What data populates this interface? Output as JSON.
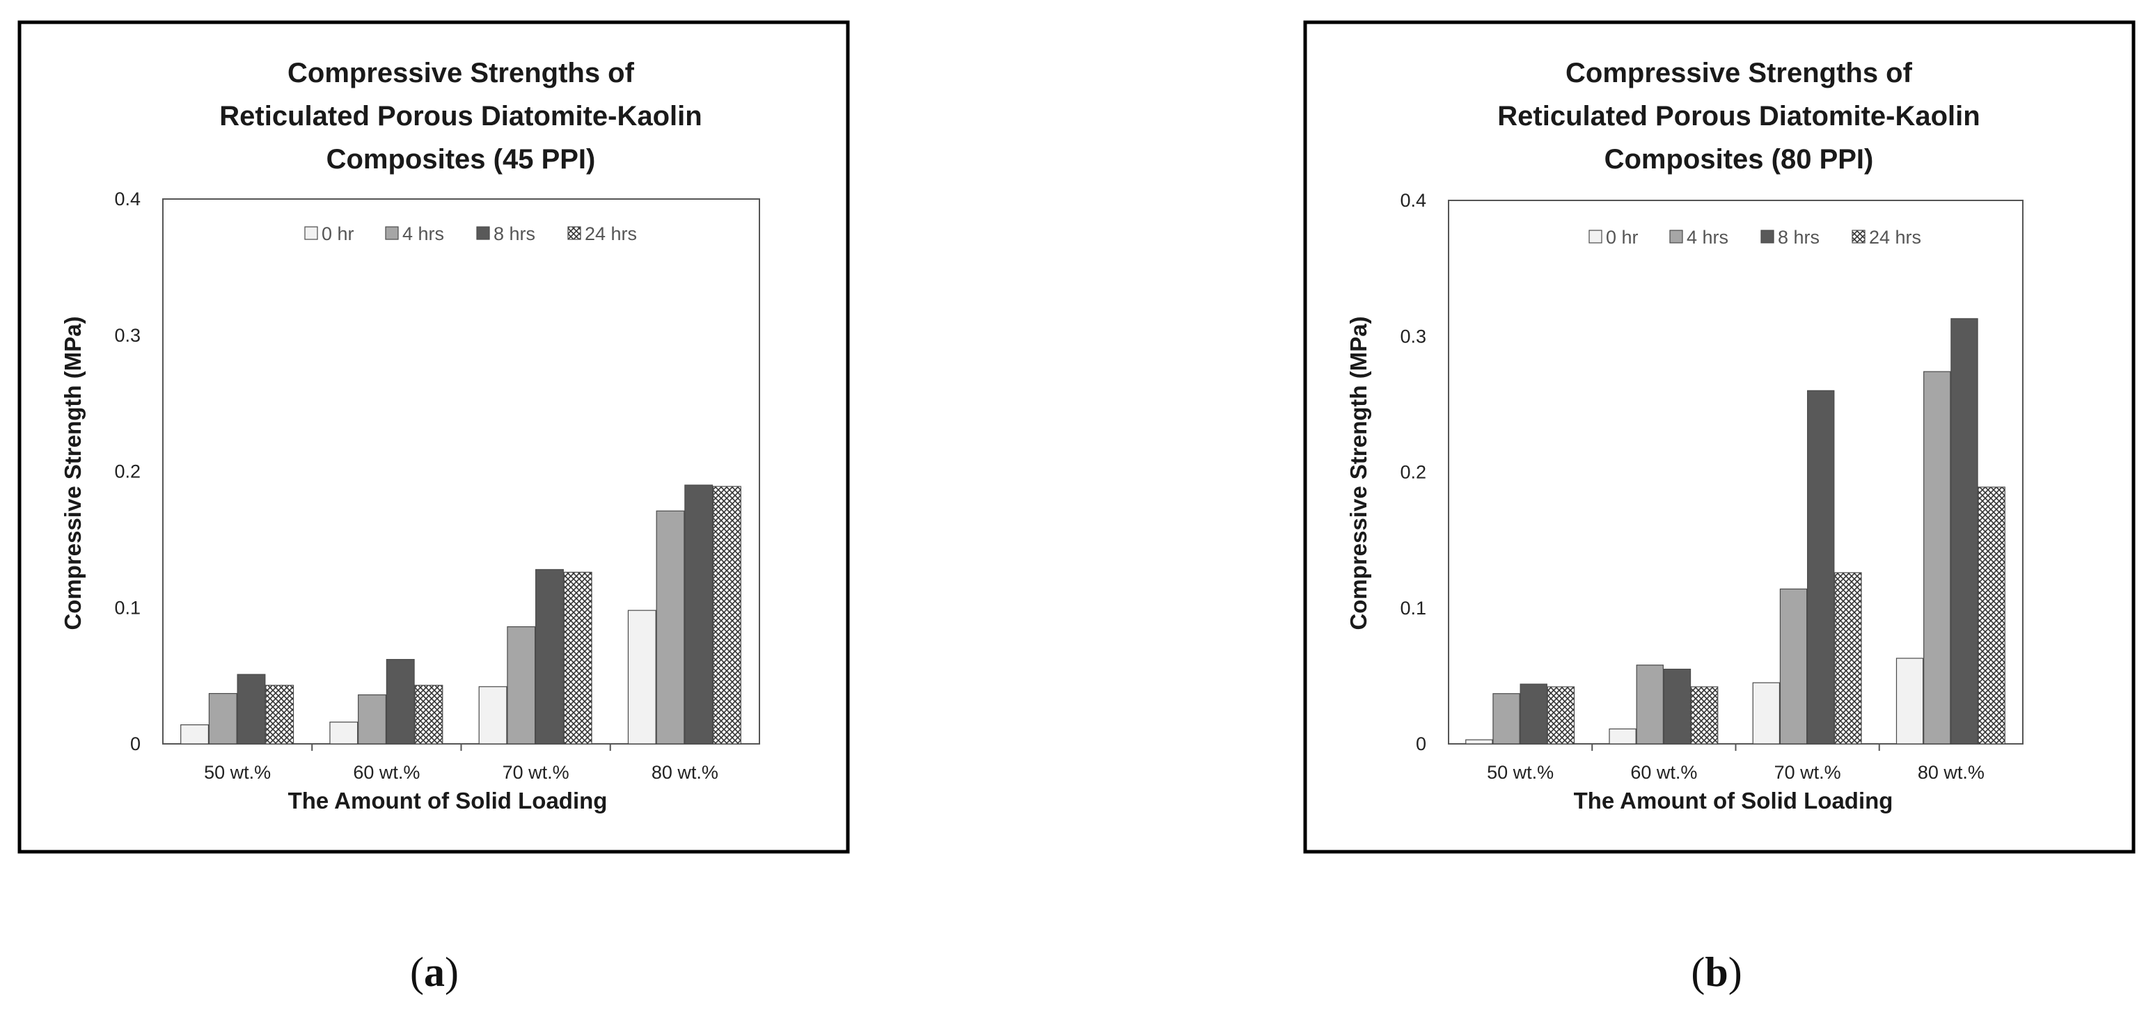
{
  "panels": [
    {
      "label": "a"
    },
    {
      "label": "b"
    }
  ],
  "chart_data": [
    {
      "type": "bar",
      "title_lines": [
        "Compressive Strengths of",
        "Reticulated Porous Diatomite-Kaolin",
        "Composites (45 PPI)"
      ],
      "xlabel": "The Amount of Solid Loading",
      "ylabel": "Compressive Strength (MPa)",
      "ylim": [
        0,
        0.4
      ],
      "yticks": [
        "0",
        "0.1",
        "0.2",
        "0.3",
        "0.4"
      ],
      "categories": [
        "50 wt.%",
        "60 wt.%",
        "70 wt.%",
        "80 wt.%"
      ],
      "legend_position": "top-center",
      "series": [
        {
          "name": "0 hr",
          "fill": "#f2f2f2",
          "values": [
            0.014,
            0.016,
            0.042,
            0.098
          ]
        },
        {
          "name": "4 hrs",
          "fill": "#a6a6a6",
          "values": [
            0.037,
            0.036,
            0.086,
            0.171
          ]
        },
        {
          "name": "8 hrs",
          "fill": "#595959",
          "values": [
            0.051,
            0.062,
            0.128,
            0.19
          ]
        },
        {
          "name": "24 hrs",
          "fill": "pattern",
          "values": [
            0.043,
            0.043,
            0.126,
            0.189
          ]
        }
      ]
    },
    {
      "type": "bar",
      "title_lines": [
        "Compressive Strengths of",
        "Reticulated Porous Diatomite-Kaolin",
        "Composites (80 PPI)"
      ],
      "xlabel": "The Amount of Solid Loading",
      "ylabel": "Compressive Strength (MPa)",
      "ylim": [
        0,
        0.4
      ],
      "yticks": [
        "0",
        "0.1",
        "0.2",
        "0.3",
        "0.4"
      ],
      "categories": [
        "50 wt.%",
        "60 wt.%",
        "70 wt.%",
        "80 wt.%"
      ],
      "legend_position": "top-center",
      "series": [
        {
          "name": "0 hr",
          "fill": "#f2f2f2",
          "values": [
            0.003,
            0.011,
            0.045,
            0.063
          ]
        },
        {
          "name": "4 hrs",
          "fill": "#a6a6a6",
          "values": [
            0.037,
            0.058,
            0.114,
            0.274
          ]
        },
        {
          "name": "8 hrs",
          "fill": "#595959",
          "values": [
            0.044,
            0.055,
            0.26,
            0.313
          ]
        },
        {
          "name": "24 hrs",
          "fill": "pattern",
          "values": [
            0.042,
            0.042,
            0.126,
            0.189
          ]
        }
      ]
    }
  ]
}
